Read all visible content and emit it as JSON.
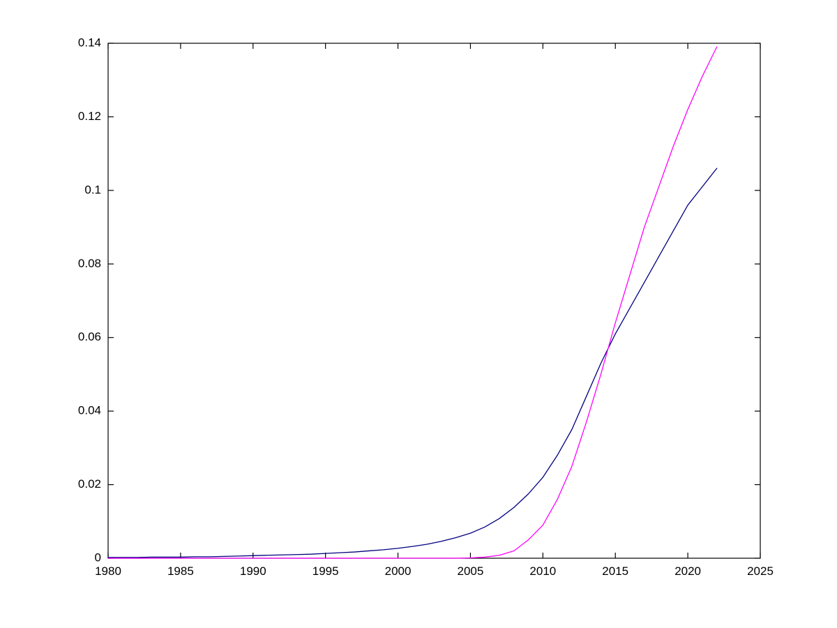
{
  "figure": {
    "background": "#ffffff",
    "axis_color": "#000000",
    "tick_label_color": "#000000"
  },
  "chart_data": {
    "type": "line",
    "title": "",
    "xlabel": "",
    "ylabel": "",
    "grid": false,
    "legend_position": "none",
    "xlim": [
      1980,
      2025
    ],
    "ylim": [
      0,
      0.14
    ],
    "x_ticks": [
      1980,
      1985,
      1990,
      1995,
      2000,
      2005,
      2010,
      2015,
      2020,
      2025
    ],
    "x_tick_labels": [
      "1980",
      "1985",
      "1990",
      "1995",
      "2000",
      "2005",
      "2010",
      "2015",
      "2020",
      "2025"
    ],
    "y_ticks": [
      0,
      0.02,
      0.04,
      0.06,
      0.08,
      0.1,
      0.12,
      0.14
    ],
    "y_tick_labels": [
      "0",
      "0.02",
      "0.04",
      "0.06",
      "0.08",
      "0.1",
      "0.12",
      "0.14"
    ],
    "x": [
      1980,
      1981,
      1982,
      1983,
      1984,
      1985,
      1986,
      1987,
      1988,
      1989,
      1990,
      1991,
      1992,
      1993,
      1994,
      1995,
      1996,
      1997,
      1998,
      1999,
      2000,
      2001,
      2002,
      2003,
      2004,
      2005,
      2006,
      2007,
      2008,
      2009,
      2010,
      2011,
      2012,
      2013,
      2014,
      2015,
      2016,
      2017,
      2018,
      2019,
      2020,
      2021,
      2022
    ],
    "series": [
      {
        "name": "blue-line",
        "color": "#000080",
        "line_width": 1.3,
        "values": [
          0.0002,
          0.0002,
          0.0002,
          0.0003,
          0.0003,
          0.0003,
          0.0004,
          0.0004,
          0.0005,
          0.0006,
          0.0007,
          0.0008,
          0.0009,
          0.001,
          0.0011,
          0.0013,
          0.0015,
          0.0017,
          0.002,
          0.0023,
          0.0027,
          0.0032,
          0.0038,
          0.0046,
          0.0056,
          0.0068,
          0.0085,
          0.0108,
          0.0138,
          0.0175,
          0.022,
          0.028,
          0.035,
          0.044,
          0.053,
          0.061,
          0.068,
          0.075,
          0.082,
          0.089,
          0.096,
          0.101,
          0.106
        ]
      },
      {
        "name": "magenta-line",
        "color": "#FF00FF",
        "line_width": 1.3,
        "values": [
          0.0,
          0.0,
          0.0,
          0.0,
          0.0,
          0.0,
          0.0,
          0.0,
          0.0,
          0.0,
          0.0,
          0.0,
          0.0,
          0.0,
          0.0,
          0.0,
          0.0,
          0.0,
          0.0,
          0.0,
          0.0,
          0.0,
          0.0,
          0.0,
          0.0,
          0.0001,
          0.0003,
          0.0008,
          0.002,
          0.005,
          0.009,
          0.016,
          0.025,
          0.037,
          0.05,
          0.064,
          0.077,
          0.09,
          0.101,
          0.112,
          0.122,
          0.131,
          0.139
        ]
      }
    ]
  }
}
